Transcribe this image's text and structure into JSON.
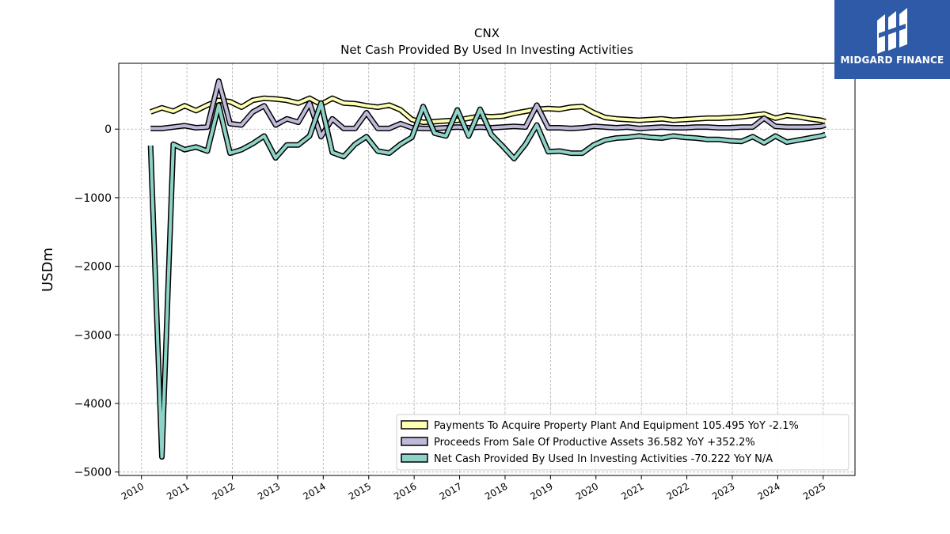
{
  "brand": {
    "name": "MIDGARD FINANCE",
    "colors": {
      "background": "#2f5aa8",
      "foreground": "#ffffff"
    }
  },
  "chart_data": {
    "type": "line",
    "title": "CNX",
    "subtitle": "Net Cash Provided By Used In Investing Activities",
    "xlabel": "",
    "ylabel": "USDm",
    "xlim": [
      2009.5,
      2025.7
    ],
    "ylim": [
      -5050,
      960
    ],
    "yticks": [
      0,
      -1000,
      -2000,
      -3000,
      -4000,
      -5000
    ],
    "ytick_labels": [
      "0",
      "−1000",
      "−2000",
      "−3000",
      "−4000",
      "−5000"
    ],
    "xticks": [
      2010,
      2011,
      2012,
      2013,
      2014,
      2015,
      2016,
      2017,
      2018,
      2019,
      2020,
      2021,
      2022,
      2023,
      2024,
      2025
    ],
    "xtick_labels": [
      "2010",
      "2011",
      "2012",
      "2013",
      "2014",
      "2015",
      "2016",
      "2017",
      "2018",
      "2019",
      "2020",
      "2021",
      "2022",
      "2023",
      "2024",
      "2025"
    ],
    "grid": true,
    "legend_position": "bottom-right",
    "x": [
      2010.2,
      2010.45,
      2010.7,
      2010.95,
      2011.2,
      2011.45,
      2011.7,
      2011.95,
      2012.2,
      2012.45,
      2012.7,
      2012.95,
      2013.2,
      2013.45,
      2013.7,
      2013.95,
      2014.2,
      2014.45,
      2014.7,
      2014.95,
      2015.2,
      2015.45,
      2015.7,
      2015.95,
      2016.2,
      2016.45,
      2016.7,
      2016.95,
      2017.2,
      2017.45,
      2017.7,
      2017.95,
      2018.2,
      2018.45,
      2018.7,
      2018.95,
      2019.2,
      2019.45,
      2019.7,
      2019.95,
      2020.2,
      2020.45,
      2020.7,
      2020.95,
      2021.2,
      2021.45,
      2021.7,
      2021.95,
      2022.2,
      2022.45,
      2022.7,
      2022.95,
      2023.2,
      2023.45,
      2023.7,
      2023.95,
      2024.2,
      2024.45,
      2024.7,
      2024.95,
      2025.05
    ],
    "series": [
      {
        "name": "Payments To Acquire Property Plant And Equipment",
        "legend_label": "Payments To Acquire Property Plant And Equipment  105.495 YoY -2.1%",
        "color": "#ffffb3",
        "values": [
          250,
          310,
          260,
          340,
          270,
          350,
          420,
          400,
          320,
          420,
          450,
          440,
          420,
          380,
          450,
          360,
          450,
          380,
          370,
          340,
          320,
          350,
          280,
          140,
          100,
          110,
          120,
          130,
          160,
          190,
          180,
          190,
          230,
          260,
          290,
          300,
          290,
          320,
          330,
          240,
          170,
          150,
          140,
          130,
          140,
          150,
          130,
          140,
          150,
          160,
          160,
          170,
          180,
          200,
          220,
          160,
          200,
          180,
          150,
          130,
          110
        ]
      },
      {
        "name": "Proceeds From Sale Of Productive Assets",
        "legend_label": "Proceeds From Sale Of Productive Assets  36.582 YoY +352.2%",
        "color": "#bebada",
        "values": [
          10,
          10,
          30,
          50,
          20,
          30,
          700,
          80,
          60,
          250,
          340,
          60,
          150,
          100,
          380,
          -110,
          150,
          10,
          10,
          240,
          10,
          10,
          80,
          20,
          10,
          10,
          20,
          30,
          20,
          30,
          20,
          30,
          40,
          30,
          350,
          20,
          20,
          10,
          20,
          40,
          30,
          20,
          30,
          10,
          20,
          30,
          20,
          20,
          30,
          30,
          20,
          20,
          30,
          30,
          160,
          40,
          30,
          30,
          30,
          40,
          60
        ]
      },
      {
        "name": "Net Cash Provided By Used In Investing Activities",
        "legend_label": "Net Cash Provided By Used In Investing Activities  -70.222 YoY N/A",
        "color": "#8dd3c7",
        "values": [
          -240,
          -4780,
          -220,
          -300,
          -260,
          -320,
          350,
          -350,
          -300,
          -210,
          -100,
          -420,
          -230,
          -230,
          -100,
          380,
          -340,
          -400,
          -220,
          -110,
          -320,
          -350,
          -220,
          -120,
          330,
          -60,
          -100,
          280,
          -100,
          290,
          -80,
          -250,
          -430,
          -220,
          60,
          -330,
          -320,
          -350,
          -350,
          -230,
          -160,
          -130,
          -120,
          -100,
          -120,
          -130,
          -100,
          -120,
          -130,
          -150,
          -150,
          -170,
          -180,
          -110,
          -200,
          -100,
          -190,
          -160,
          -130,
          -100,
          -80
        ]
      }
    ]
  }
}
